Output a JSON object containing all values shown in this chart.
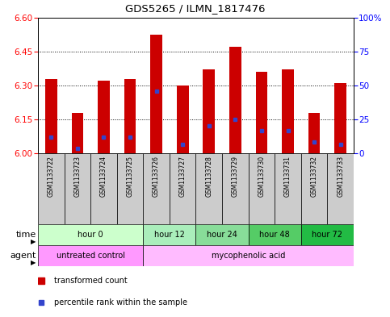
{
  "title": "GDS5265 / ILMN_1817476",
  "samples": [
    "GSM1133722",
    "GSM1133723",
    "GSM1133724",
    "GSM1133725",
    "GSM1133726",
    "GSM1133727",
    "GSM1133728",
    "GSM1133729",
    "GSM1133730",
    "GSM1133731",
    "GSM1133732",
    "GSM1133733"
  ],
  "bar_values": [
    6.33,
    6.18,
    6.32,
    6.33,
    6.525,
    6.3,
    6.37,
    6.47,
    6.36,
    6.37,
    6.18,
    6.31
  ],
  "blue_dot_values": [
    6.07,
    6.02,
    6.07,
    6.07,
    6.275,
    6.04,
    6.12,
    6.15,
    6.1,
    6.1,
    6.05,
    6.04
  ],
  "bar_base": 6.0,
  "ymin": 6.0,
  "ymax": 6.6,
  "yticks_left": [
    6.0,
    6.15,
    6.3,
    6.45,
    6.6
  ],
  "yticks_right_vals": [
    0,
    25,
    50,
    75,
    100
  ],
  "yticks_right_labels": [
    "0",
    "25",
    "50",
    "75",
    "100%"
  ],
  "bar_color": "#cc0000",
  "blue_dot_color": "#3344cc",
  "time_groups": [
    {
      "label": "hour 0",
      "start": 0,
      "end": 4,
      "color": "#ccffcc"
    },
    {
      "label": "hour 12",
      "start": 4,
      "end": 6,
      "color": "#aaeebb"
    },
    {
      "label": "hour 24",
      "start": 6,
      "end": 8,
      "color": "#88dd99"
    },
    {
      "label": "hour 48",
      "start": 8,
      "end": 10,
      "color": "#55cc66"
    },
    {
      "label": "hour 72",
      "start": 10,
      "end": 12,
      "color": "#22bb44"
    }
  ],
  "agent_groups": [
    {
      "label": "untreated control",
      "start": 0,
      "end": 4,
      "color": "#ff99ff"
    },
    {
      "label": "mycophenolic acid",
      "start": 4,
      "end": 12,
      "color": "#ffbbff"
    }
  ],
  "xlabel_time": "time",
  "xlabel_agent": "agent",
  "legend_red": "transformed count",
  "legend_blue": "percentile rank within the sample",
  "bg_color": "#ffffff",
  "plot_bg": "#ffffff",
  "sample_bg": "#cccccc"
}
